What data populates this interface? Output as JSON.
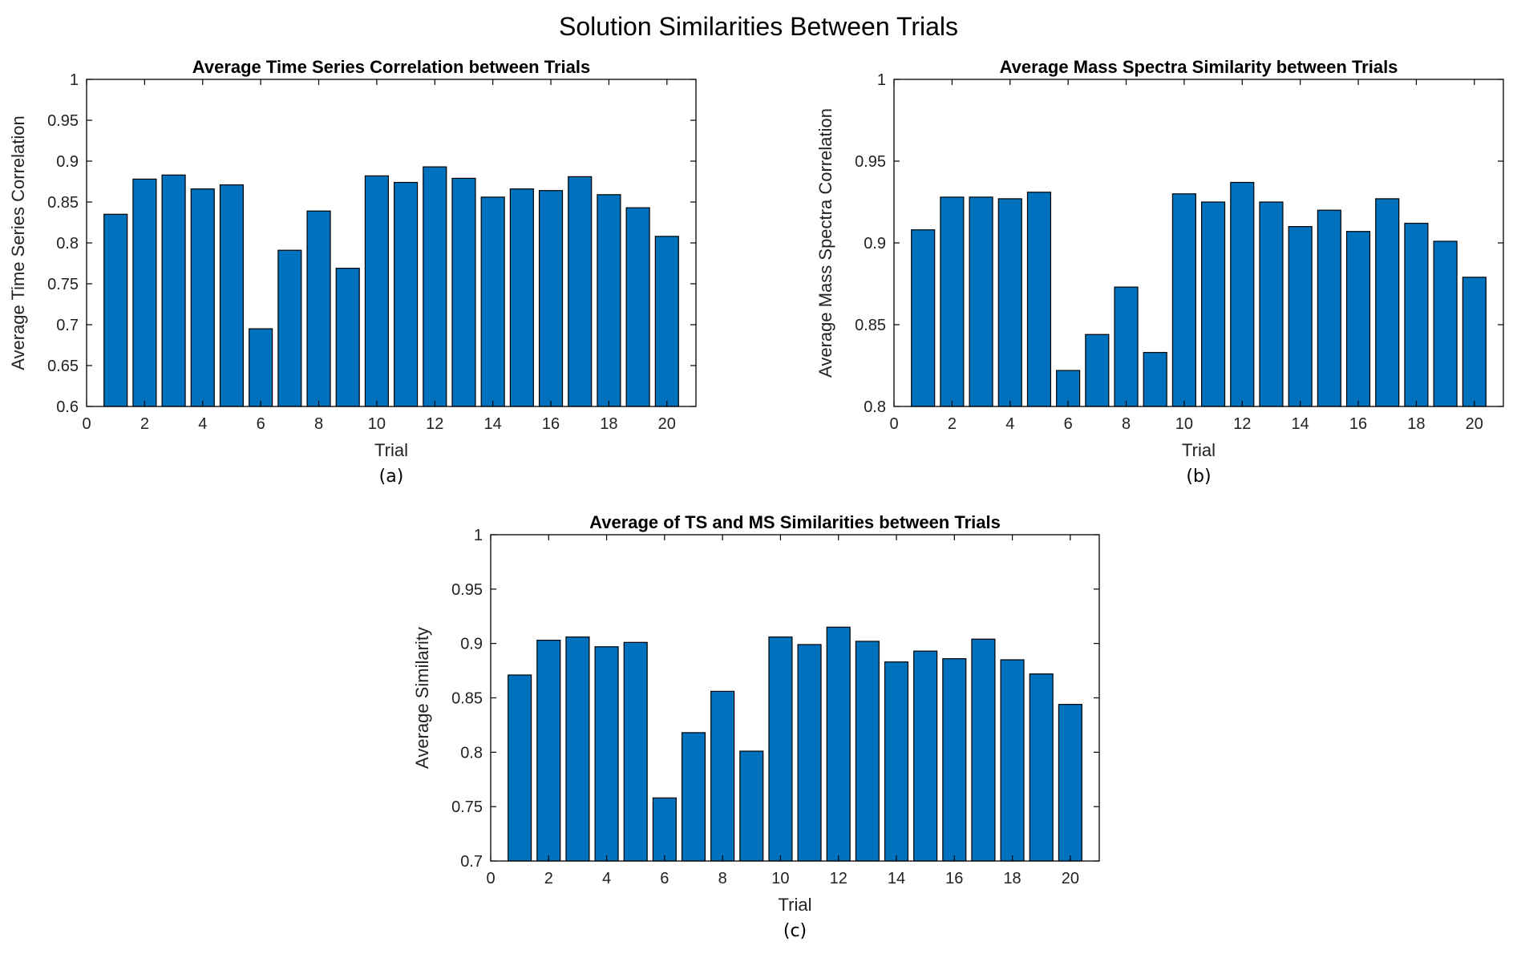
{
  "figure": {
    "suptitle": "Solution Similarities Between Trials"
  },
  "chart_data": [
    {
      "type": "bar",
      "panel_label": "(a)",
      "title": "Average Time Series Correlation between Trials",
      "xlabel": "Trial",
      "ylabel": "Average Time Series Correlation",
      "xlim": [
        0,
        21
      ],
      "ylim": [
        0.6,
        1
      ],
      "xticks": [
        0,
        2,
        4,
        6,
        8,
        10,
        12,
        14,
        16,
        18,
        20
      ],
      "xtick_labels": [
        "0",
        "2",
        "4",
        "6",
        "8",
        "10",
        "12",
        "14",
        "16",
        "18",
        "20"
      ],
      "yticks": [
        0.6,
        0.65,
        0.7,
        0.75,
        0.8,
        0.85,
        0.9,
        0.95,
        1
      ],
      "ytick_labels": [
        "0.6",
        "0.65",
        "0.7",
        "0.75",
        "0.8",
        "0.85",
        "0.9",
        "0.95",
        "1"
      ],
      "categories": [
        1,
        2,
        3,
        4,
        5,
        6,
        7,
        8,
        9,
        10,
        11,
        12,
        13,
        14,
        15,
        16,
        17,
        18,
        19,
        20
      ],
      "values": [
        0.835,
        0.878,
        0.883,
        0.866,
        0.871,
        0.695,
        0.791,
        0.839,
        0.769,
        0.882,
        0.874,
        0.893,
        0.879,
        0.856,
        0.866,
        0.864,
        0.881,
        0.859,
        0.843,
        0.808
      ],
      "color": "#0072BD",
      "grid": false
    },
    {
      "type": "bar",
      "panel_label": "(b)",
      "title": "Average Mass Spectra Similarity between Trials",
      "xlabel": "Trial",
      "ylabel": "Average Mass Spectra Correlation",
      "xlim": [
        0,
        21
      ],
      "ylim": [
        0.8,
        1
      ],
      "xticks": [
        0,
        2,
        4,
        6,
        8,
        10,
        12,
        14,
        16,
        18,
        20
      ],
      "xtick_labels": [
        "0",
        "2",
        "4",
        "6",
        "8",
        "10",
        "12",
        "14",
        "16",
        "18",
        "20"
      ],
      "yticks": [
        0.8,
        0.85,
        0.9,
        0.95,
        1
      ],
      "ytick_labels": [
        "0.8",
        "0.85",
        "0.9",
        "0.95",
        "1"
      ],
      "categories": [
        1,
        2,
        3,
        4,
        5,
        6,
        7,
        8,
        9,
        10,
        11,
        12,
        13,
        14,
        15,
        16,
        17,
        18,
        19,
        20
      ],
      "values": [
        0.908,
        0.928,
        0.928,
        0.927,
        0.931,
        0.822,
        0.844,
        0.873,
        0.833,
        0.93,
        0.925,
        0.937,
        0.925,
        0.91,
        0.92,
        0.907,
        0.927,
        0.912,
        0.901,
        0.879
      ],
      "color": "#0072BD",
      "grid": false
    },
    {
      "type": "bar",
      "panel_label": "(c)",
      "title": "Average of TS and MS Similarities between Trials",
      "xlabel": "Trial",
      "ylabel": "Average Similarity",
      "xlim": [
        0,
        21
      ],
      "ylim": [
        0.7,
        1
      ],
      "xticks": [
        0,
        2,
        4,
        6,
        8,
        10,
        12,
        14,
        16,
        18,
        20
      ],
      "xtick_labels": [
        "0",
        "2",
        "4",
        "6",
        "8",
        "10",
        "12",
        "14",
        "16",
        "18",
        "20"
      ],
      "yticks": [
        0.7,
        0.75,
        0.8,
        0.85,
        0.9,
        0.95,
        1
      ],
      "ytick_labels": [
        "0.7",
        "0.75",
        "0.8",
        "0.85",
        "0.9",
        "0.95",
        "1"
      ],
      "categories": [
        1,
        2,
        3,
        4,
        5,
        6,
        7,
        8,
        9,
        10,
        11,
        12,
        13,
        14,
        15,
        16,
        17,
        18,
        19,
        20
      ],
      "values": [
        0.871,
        0.903,
        0.906,
        0.897,
        0.901,
        0.758,
        0.818,
        0.856,
        0.801,
        0.906,
        0.899,
        0.915,
        0.902,
        0.883,
        0.893,
        0.886,
        0.904,
        0.885,
        0.872,
        0.844
      ],
      "color": "#0072BD",
      "grid": false
    }
  ]
}
